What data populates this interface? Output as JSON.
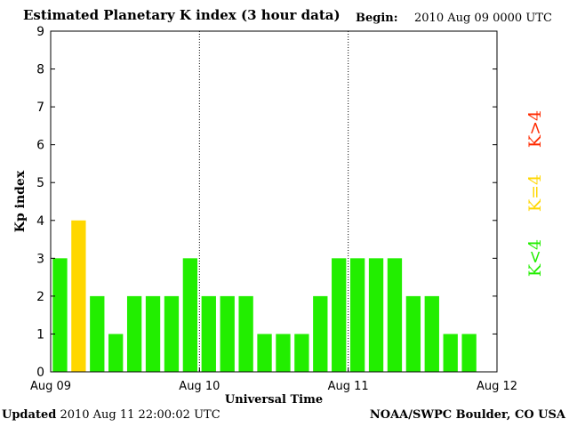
{
  "header": {
    "title": "Estimated Planetary K index (3 hour data)",
    "begin_label": "Begin:",
    "begin_value": "2010 Aug 09 0000 UTC"
  },
  "footer": {
    "updated_label": "Updated",
    "updated_value": "2010 Aug 11 22:00:02 UTC",
    "credit": "NOAA/SWPC Boulder, CO USA"
  },
  "legend": [
    {
      "label": "K>4",
      "color": "#ff2a00"
    },
    {
      "label": "K=4",
      "color": "#ffd700"
    },
    {
      "label": "K<4",
      "color": "#22ee00"
    }
  ],
  "chart_data": {
    "type": "bar",
    "title": "Estimated Planetary K index (3 hour data)",
    "xlabel": "Universal Time",
    "ylabel": "Kp index",
    "ylim": [
      0,
      9
    ],
    "yticks": [
      0,
      1,
      2,
      3,
      4,
      5,
      6,
      7,
      8,
      9
    ],
    "x_range_days": [
      0,
      3
    ],
    "x_tick_labels": [
      "Aug 09",
      "Aug 10",
      "Aug 11",
      "Aug 12"
    ],
    "day_dividers": [
      1,
      2
    ],
    "interval_hours": 3,
    "values": [
      3,
      4,
      2,
      1,
      2,
      2,
      2,
      3,
      2,
      2,
      2,
      1,
      1,
      1,
      2,
      3,
      3,
      3,
      3,
      2,
      2,
      1,
      1
    ],
    "colors": {
      "below4": "#22ee00",
      "equal4": "#ffd700",
      "above4": "#ff2a00"
    }
  }
}
